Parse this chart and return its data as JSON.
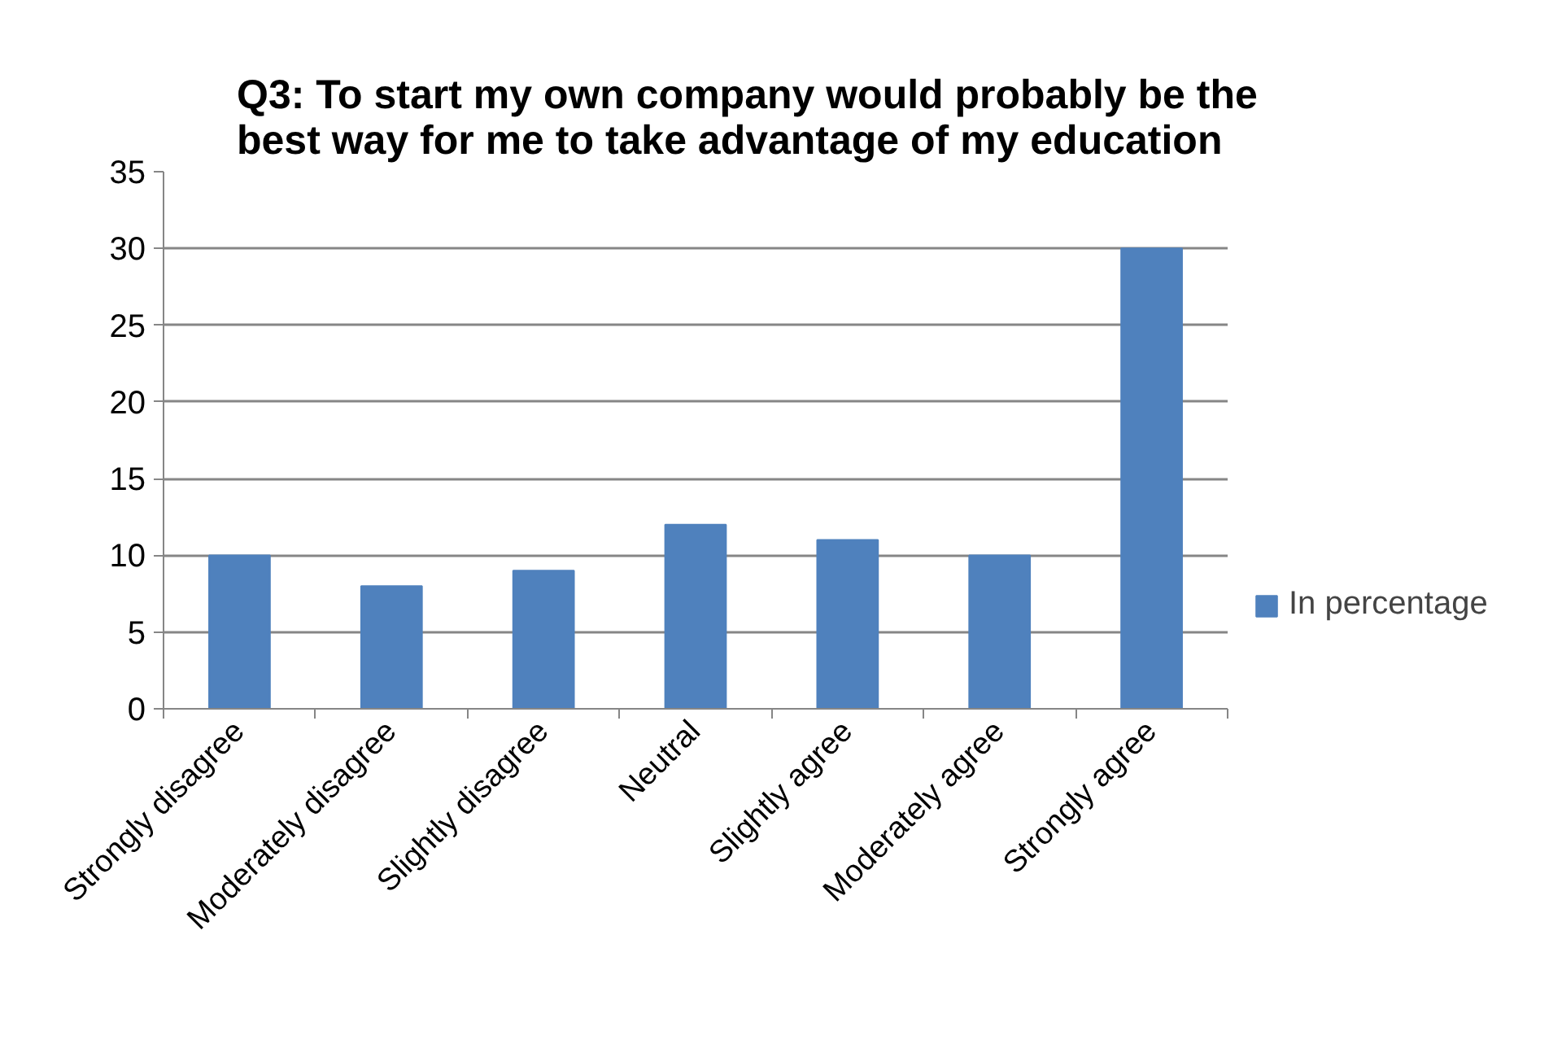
{
  "chart_data": {
    "type": "bar",
    "title": "Q3: To start my own company would probably be the best way for me to take advantage of my education",
    "categories": [
      "Strongly disagree",
      "Moderately disagree",
      "Slightly disagree",
      "Neutral",
      "Slightly agree",
      "Moderately agree",
      "Strongly agree"
    ],
    "series": [
      {
        "name": "In percentage",
        "color": "#4f81bd",
        "values": [
          10,
          8,
          9,
          12,
          11,
          10,
          30
        ]
      }
    ],
    "ylim": [
      0,
      35
    ],
    "yticks": [
      0,
      5,
      10,
      15,
      20,
      25,
      30,
      35
    ],
    "grid": "y",
    "legend": "right"
  }
}
